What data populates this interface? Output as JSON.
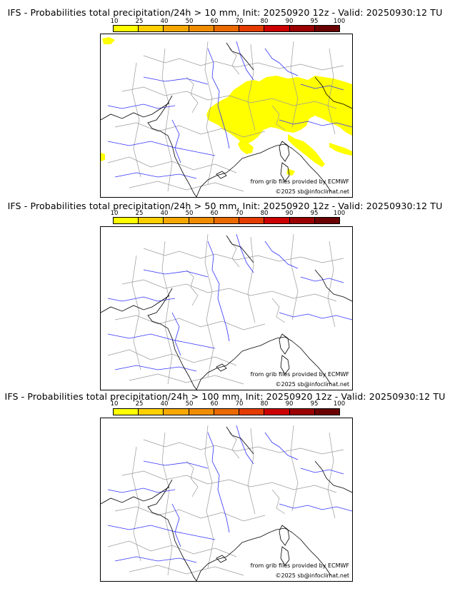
{
  "colorbar": {
    "ticks": [
      "10",
      "25",
      "40",
      "50",
      "60",
      "70",
      "80",
      "90",
      "95",
      "100"
    ],
    "colors": [
      "#ffff00",
      "#ffd000",
      "#f7a800",
      "#f08c00",
      "#ea6a00",
      "#e43c00",
      "#cc0000",
      "#9a0000",
      "#6a0000"
    ]
  },
  "land_color": "#ffffff",
  "river_color": "#3333ff",
  "border_color": "#000000",
  "admin_color": "#9a9a9a",
  "panels": [
    {
      "title": "IFS - Probabilities total precipitation/24h > 10 mm, Init: 20250920 12z - Valid: 20250930:12 TU",
      "credit_grib": "from grib files provided by ECMWF",
      "credit_copy": "©2025 sb@infoclimat.net",
      "precip_area": "northern-italy-switzerland-southeast-france"
    },
    {
      "title": "IFS - Probabilities total precipitation/24h > 50 mm, Init: 20250920 12z - Valid: 20250930:12 TU",
      "credit_grib": "from grib files provided by ECMWF",
      "credit_copy": "©2025 sb@infoclimat.net",
      "precip_area": "none"
    },
    {
      "title": "IFS - Probabilities total precipitation/24h > 100 mm, Init: 20250920 12z - Valid: 20250930:12 TU",
      "credit_grib": "from grib files provided by ECMWF",
      "credit_copy": "©2025 sb@infoclimat.net",
      "precip_area": "none"
    }
  ]
}
